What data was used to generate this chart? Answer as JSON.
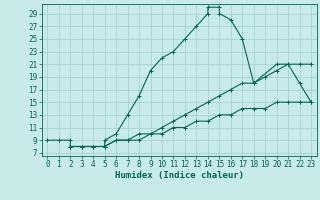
{
  "xlabel": "Humidex (Indice chaleur)",
  "bg_color": "#c8eae8",
  "grid_color": "#9ecece",
  "line_color": "#006655",
  "xlim": [
    -0.5,
    23.5
  ],
  "ylim": [
    6.5,
    30.5
  ],
  "xticks": [
    0,
    1,
    2,
    3,
    4,
    5,
    6,
    7,
    8,
    9,
    10,
    11,
    12,
    13,
    14,
    15,
    16,
    17,
    18,
    19,
    20,
    21,
    22,
    23
  ],
  "yticks": [
    7,
    9,
    11,
    13,
    15,
    17,
    19,
    21,
    23,
    25,
    27,
    29
  ],
  "curve1_x": [
    0,
    1,
    2,
    2,
    3,
    3,
    4,
    4,
    5,
    5,
    6,
    7,
    8,
    9,
    10,
    11,
    12,
    13,
    14,
    14,
    15,
    15,
    16,
    17,
    18,
    20,
    21,
    22,
    23
  ],
  "curve1_y": [
    9,
    9,
    9,
    8,
    8,
    8,
    8,
    8,
    8,
    9,
    10,
    13,
    16,
    20,
    22,
    23,
    25,
    27,
    29,
    30,
    30,
    29,
    28,
    25,
    18,
    21,
    21,
    18,
    15
  ],
  "curve2_x": [
    2,
    3,
    4,
    5,
    6,
    7,
    8,
    9,
    10,
    11,
    12,
    13,
    14,
    15,
    16,
    17,
    18,
    19,
    20,
    21,
    22,
    23
  ],
  "curve2_y": [
    8,
    8,
    8,
    8,
    9,
    9,
    9,
    10,
    10,
    11,
    11,
    12,
    12,
    13,
    13,
    14,
    14,
    14,
    15,
    15,
    15,
    15
  ],
  "curve3_x": [
    2,
    3,
    4,
    5,
    6,
    7,
    8,
    9,
    10,
    11,
    12,
    13,
    14,
    15,
    16,
    17,
    18,
    19,
    20,
    21,
    22,
    23
  ],
  "curve3_y": [
    8,
    8,
    8,
    8,
    9,
    9,
    10,
    10,
    11,
    12,
    13,
    14,
    15,
    16,
    17,
    18,
    18,
    19,
    20,
    21,
    21,
    21
  ],
  "tick_fontsize": 5.5,
  "label_fontsize": 6.5
}
